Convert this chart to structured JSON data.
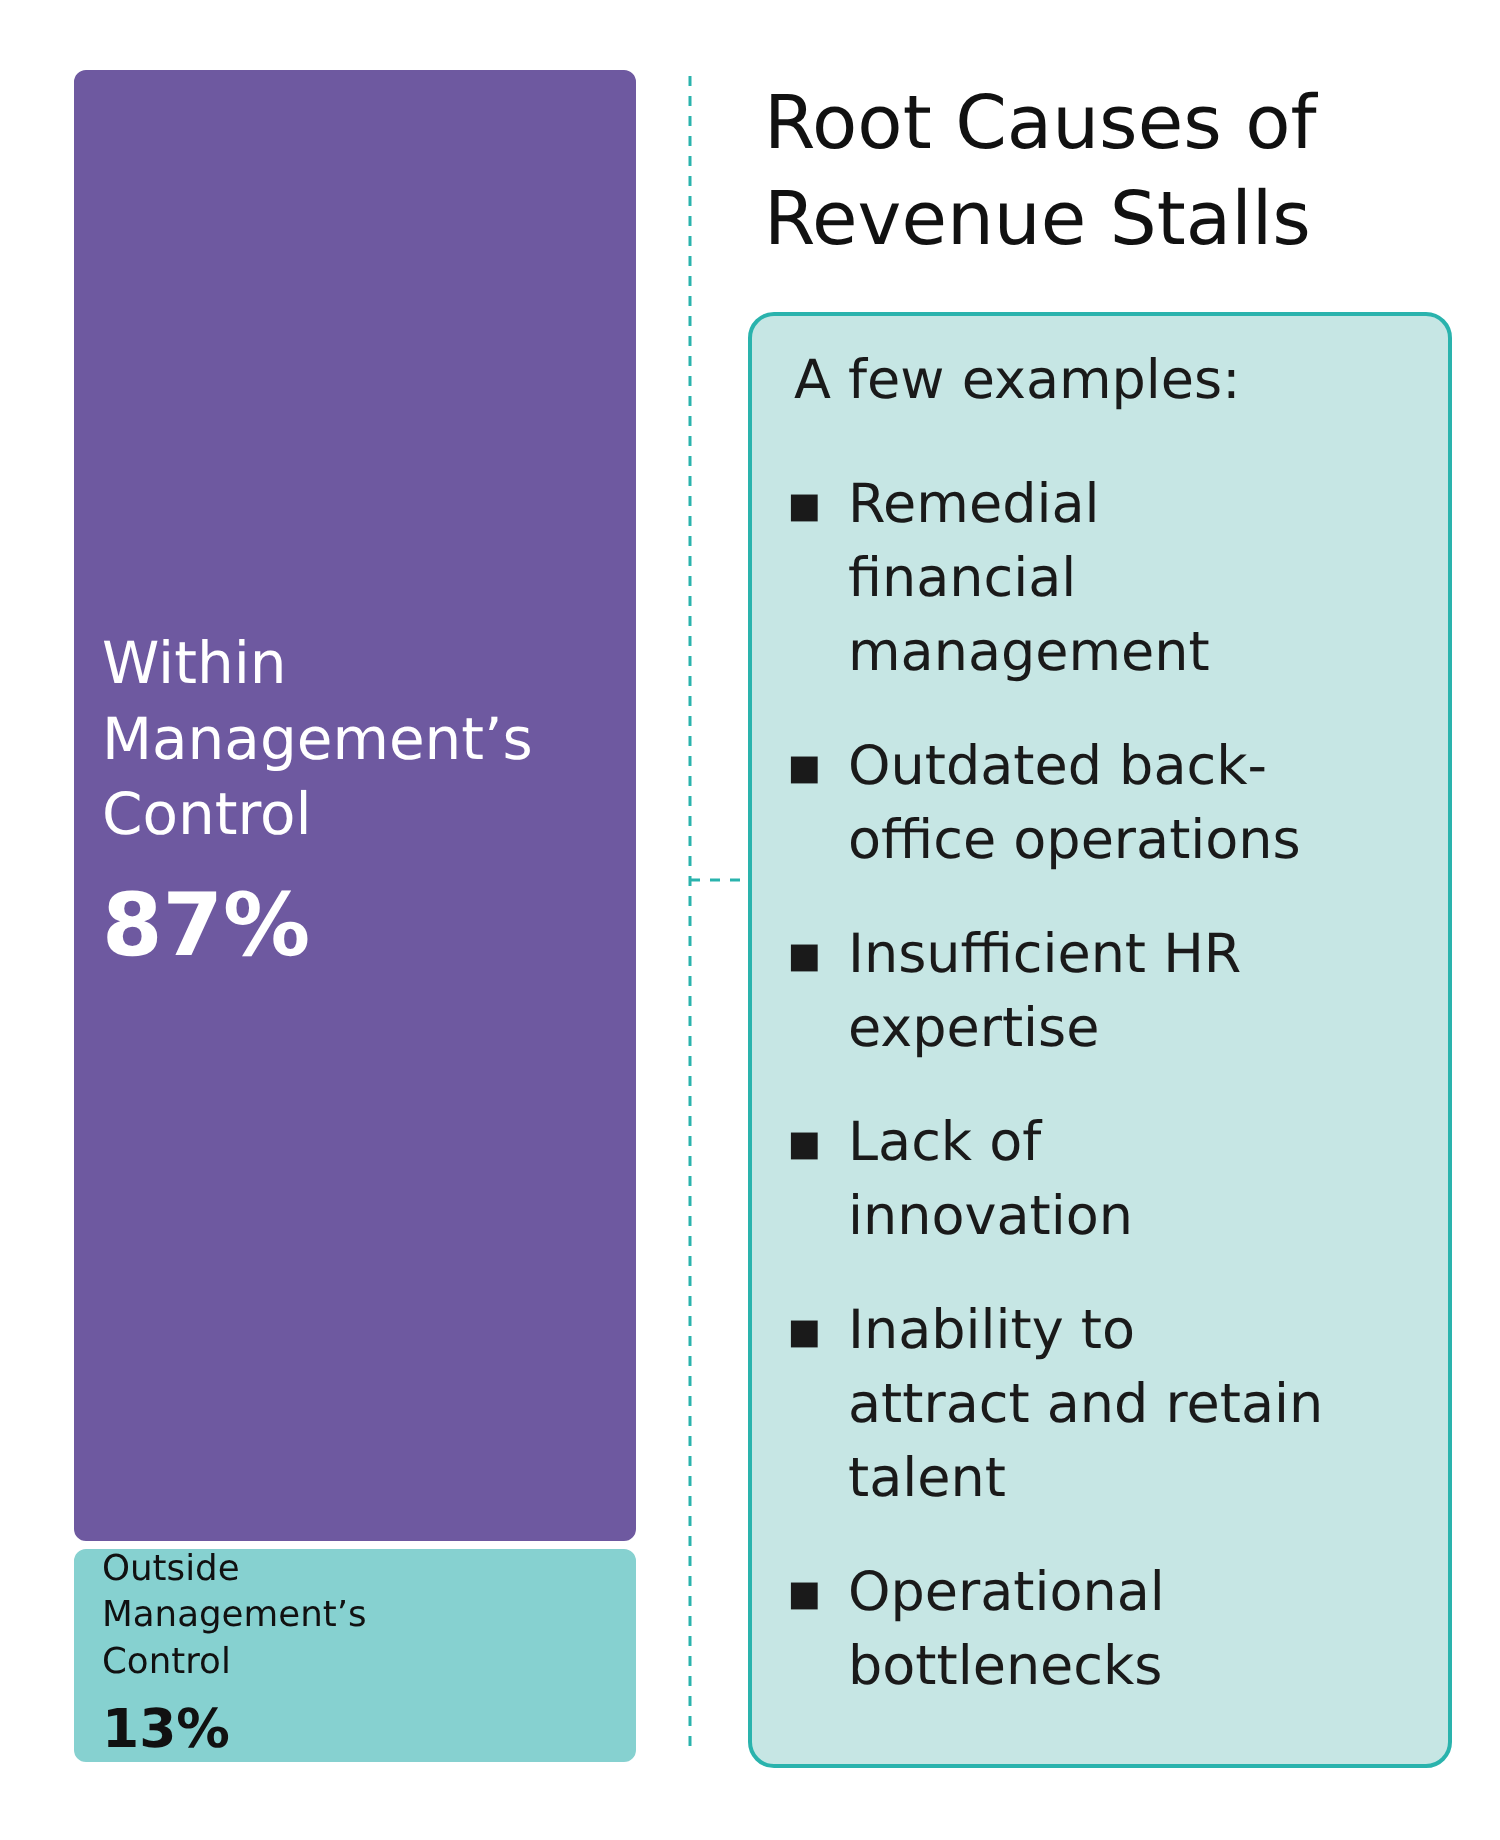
{
  "chart_data": {
    "type": "bar",
    "stacked": true,
    "title": "Root Causes of\nRevenue Stalls",
    "categories": [
      null
    ],
    "series": [
      {
        "name": "Outside Management’s Control",
        "color": "#86d1d0",
        "values": [
          13
        ],
        "value_labels": [
          "13%"
        ]
      },
      {
        "name": "Within Management’s Control",
        "color": "#6e59a0",
        "values": [
          87
        ],
        "value_labels": [
          "87%"
        ]
      }
    ],
    "annotations": [
      "A few examples:",
      "▪ Remedial\nfinancial\nmanagement",
      "▪ Outdated back-\noffice operations",
      "▪ Insufficient HR\nexpertise",
      "▪ Lack of\ninnovation",
      "▪ Inability to\nattract and retain\ntalent",
      "▪ Operational\nbottlenecks"
    ]
  }
}
